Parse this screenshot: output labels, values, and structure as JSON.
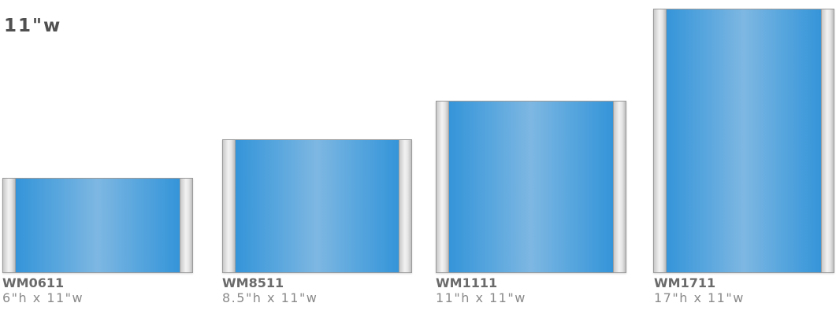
{
  "heading": "11\"w",
  "products": [
    {
      "model": "WM0611",
      "size": "6\"h x 11\"w",
      "height_in": 6,
      "width_in": 11
    },
    {
      "model": "WM8511",
      "size": "8.5\"h x 11\"w",
      "height_in": 8.5,
      "width_in": 11
    },
    {
      "model": "WM1111",
      "size": "11\"h x 11\"w",
      "height_in": 11,
      "width_in": 11
    },
    {
      "model": "WM1711",
      "size": "17\"h x 11\"w",
      "height_in": 17,
      "width_in": 11
    }
  ],
  "colors": {
    "insert_blue": "#2a8fd7",
    "insert_highlight": "#7eb7e2",
    "end_cap": "#e6e6e6",
    "heading_text": "#505050",
    "model_text": "#6a6a6a",
    "size_text": "#8a8a8a"
  }
}
